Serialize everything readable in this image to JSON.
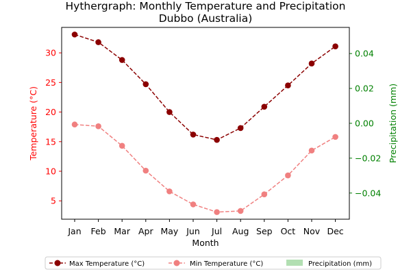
{
  "chart_data": {
    "type": "line",
    "title_line1": "Hythergraph: Monthly Temperature and Precipitation",
    "title_line2": "Dubbo (Australia)",
    "xlabel": "Month",
    "ylabel_left": "Temperature (°C)",
    "ylabel_right": "Precipitation (mm)",
    "categories": [
      "Jan",
      "Feb",
      "Mar",
      "Apr",
      "May",
      "Jun",
      "Jul",
      "Aug",
      "Sep",
      "Oct",
      "Nov",
      "Dec"
    ],
    "ylim_left": [
      1.9,
      34.3
    ],
    "yticks_left": [
      "5",
      "10",
      "15",
      "20",
      "25",
      "30"
    ],
    "ylim_right": [
      -0.055,
      0.055
    ],
    "yticks_right": [
      "−0.04",
      "−0.02",
      "0.00",
      "0.02",
      "0.04"
    ],
    "series": [
      {
        "name": "Max Temperature (°C)",
        "color": "#8b0000",
        "axis": "left",
        "values": [
          33.1,
          31.8,
          28.8,
          24.7,
          20.0,
          16.2,
          15.3,
          17.3,
          20.9,
          24.5,
          28.2,
          31.1
        ]
      },
      {
        "name": "Min Temperature (°C)",
        "color": "#f08080",
        "axis": "left",
        "values": [
          17.9,
          17.6,
          14.3,
          10.1,
          6.6,
          4.4,
          3.1,
          3.3,
          6.1,
          9.3,
          13.5,
          15.8
        ]
      }
    ],
    "precipitation": {
      "name": "Precipitation (mm)",
      "color": "#b2dfb2",
      "values": []
    },
    "left_axis_color": "#ff0000",
    "right_axis_color": "#008000",
    "legend_position": "bottom"
  }
}
